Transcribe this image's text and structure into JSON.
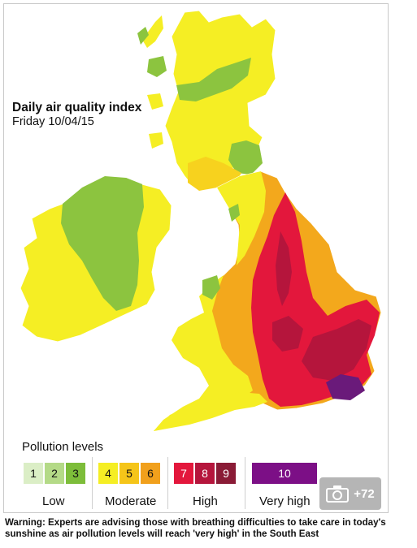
{
  "map": {
    "title": "Daily air quality index",
    "subtitle": "Friday 10/04/15",
    "region": "UK and Ireland",
    "colors": {
      "green": "#8cc43f",
      "yellow": "#f5ee24",
      "yellow_orange": "#f7d21e",
      "orange": "#f3a81c",
      "red": "#e3173c",
      "dark_red": "#b5153c",
      "purple": "#6a1a7a"
    }
  },
  "legend": {
    "title": "Pollution levels",
    "bands": [
      {
        "value": "1",
        "color": "#dbeec6"
      },
      {
        "value": "2",
        "color": "#b4da87"
      },
      {
        "value": "3",
        "color": "#7dbd3a"
      },
      {
        "value": "4",
        "color": "#f5ee24"
      },
      {
        "value": "5",
        "color": "#f5c519"
      },
      {
        "value": "6",
        "color": "#f1a01c"
      },
      {
        "value": "7",
        "color": "#e3173c"
      },
      {
        "value": "8",
        "color": "#b5153c"
      },
      {
        "value": "9",
        "color": "#8a1b36"
      },
      {
        "value": "10",
        "color": "#7c0f86"
      }
    ],
    "groups": [
      "Low",
      "Moderate",
      "High",
      "Very high"
    ]
  },
  "photo_badge": {
    "icon": "camera-icon",
    "count": "+72"
  },
  "caption": "Warning: Experts are advising those with breathing difficulties to take care in today's sunshine as air pollution levels will reach 'very high' in the South East"
}
